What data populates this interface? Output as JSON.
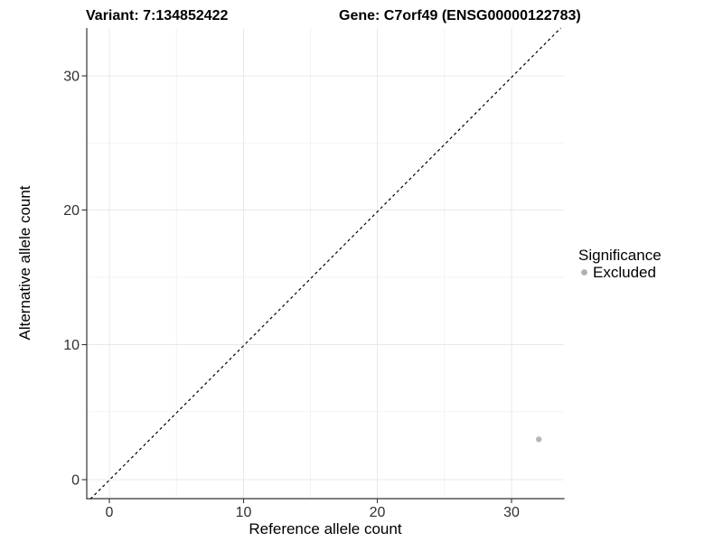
{
  "chart_data": {
    "type": "scatter",
    "title_left": "Variant: 7:134852422",
    "title_right": "Gene: C7orf49 (ENSG00000122783)",
    "xlabel": "Reference allele count",
    "ylabel": "Alternative allele count",
    "x_tick_labels": [
      "0",
      "10",
      "20",
      "30"
    ],
    "y_tick_labels": [
      "0",
      "10",
      "20",
      "30"
    ],
    "x_ticks": [
      0,
      10,
      20,
      30
    ],
    "y_ticks": [
      0,
      10,
      20,
      30
    ],
    "xlim": [
      -1.7,
      33.9
    ],
    "ylim": [
      -1.4,
      33.6
    ],
    "grid": {
      "major": true,
      "minor": true
    },
    "points": [
      {
        "x": 32,
        "y": 3,
        "series": "Excluded",
        "color": "#b7b7b7"
      }
    ],
    "reference_line": {
      "type": "identity y=x",
      "style": "dashed",
      "color": "#000000"
    },
    "legend": {
      "title": "Significance",
      "position": "right",
      "items": [
        {
          "label": "Excluded",
          "marker": "circle",
          "color": "#b0b0b0"
        }
      ]
    },
    "colors": {
      "background": "#ffffff",
      "grid_major": "#e8e8e8",
      "grid_minor": "#f3f3f3",
      "axis_line": "#333333",
      "tick_label": "#303030",
      "title": "#000000",
      "point": "#b7b7b7"
    }
  }
}
